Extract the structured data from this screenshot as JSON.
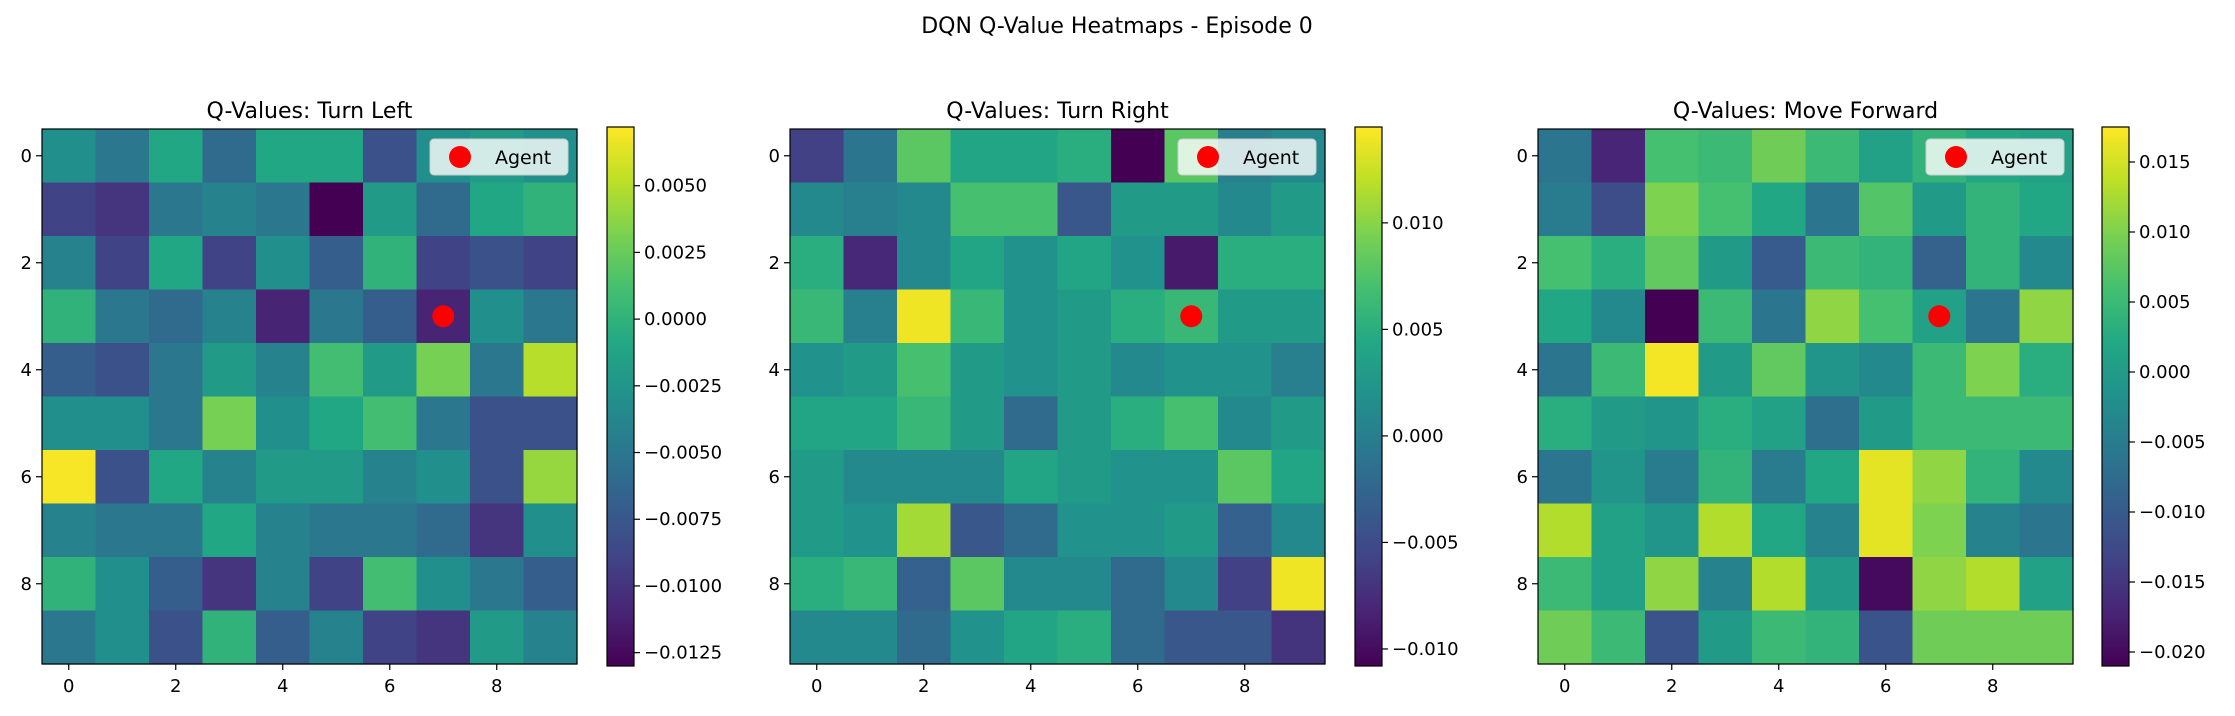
{
  "figure_title": "DQN Q-Value Heatmaps - Episode 0",
  "chart_data": [
    {
      "type": "heatmap",
      "title": "Q-Values: Turn Left",
      "legend": "Agent",
      "legend_position": "top-right",
      "agent": {
        "x": 7,
        "y": 3
      },
      "x_ticks": [
        "0",
        "2",
        "4",
        "6",
        "8"
      ],
      "y_ticks": [
        "0",
        "2",
        "4",
        "6",
        "8"
      ],
      "colorbar": {
        "min": -0.013,
        "max": 0.0072,
        "ticks": [
          -0.0125,
          -0.01,
          -0.0075,
          -0.005,
          -0.0025,
          0.0,
          0.0025,
          0.005
        ],
        "tick_labels": [
          "−0.0125",
          "−0.0100",
          "−0.0075",
          "−0.0050",
          "−0.0025",
          "0.0000",
          "0.0025",
          "0.0050"
        ]
      },
      "values": [
        [
          -0.003,
          -0.005,
          -0.001,
          -0.006,
          -0.001,
          -0.001,
          -0.008,
          -0.003,
          -0.002,
          -0.003
        ],
        [
          -0.009,
          -0.01,
          -0.005,
          -0.004,
          -0.005,
          -0.013,
          -0.002,
          -0.006,
          -0.001,
          0.0
        ],
        [
          -0.004,
          -0.009,
          -0.001,
          -0.009,
          -0.003,
          -0.007,
          0.0,
          -0.009,
          -0.008,
          -0.009
        ],
        [
          0.0,
          -0.005,
          -0.006,
          -0.004,
          -0.011,
          -0.005,
          -0.007,
          -0.011,
          -0.003,
          -0.005
        ],
        [
          -0.007,
          -0.008,
          -0.005,
          -0.002,
          -0.004,
          0.001,
          -0.002,
          0.003,
          -0.005,
          0.005
        ],
        [
          -0.003,
          -0.003,
          -0.005,
          0.003,
          -0.003,
          -0.001,
          0.001,
          -0.005,
          -0.008,
          -0.008
        ],
        [
          0.007,
          -0.008,
          -0.001,
          -0.004,
          -0.002,
          -0.002,
          -0.004,
          -0.003,
          -0.008,
          0.004
        ],
        [
          -0.004,
          -0.005,
          -0.005,
          -0.001,
          -0.004,
          -0.005,
          -0.005,
          -0.006,
          -0.01,
          -0.003
        ],
        [
          0.0,
          -0.003,
          -0.007,
          -0.01,
          -0.004,
          -0.009,
          0.001,
          -0.003,
          -0.005,
          -0.007
        ],
        [
          -0.005,
          -0.003,
          -0.008,
          0.0,
          -0.007,
          -0.004,
          -0.009,
          -0.01,
          -0.002,
          -0.004
        ]
      ]
    },
    {
      "type": "heatmap",
      "title": "Q-Values: Turn Right",
      "legend": "Agent",
      "legend_position": "top-right",
      "agent": {
        "x": 7,
        "y": 3
      },
      "x_ticks": [
        "0",
        "2",
        "4",
        "6",
        "8"
      ],
      "y_ticks": [
        "0",
        "2",
        "4",
        "6",
        "8"
      ],
      "colorbar": {
        "min": -0.0108,
        "max": 0.0145,
        "ticks": [
          -0.01,
          -0.005,
          0.0,
          0.005,
          0.01
        ],
        "tick_labels": [
          "−0.010",
          "−0.005",
          "0.000",
          "0.005",
          "0.010"
        ]
      },
      "values": [
        [
          -0.006,
          -0.001,
          0.008,
          0.004,
          0.004,
          0.005,
          -0.011,
          0.008,
          0.0,
          0.001
        ],
        [
          0.001,
          0.0,
          0.001,
          0.007,
          0.007,
          -0.004,
          0.003,
          0.003,
          0.001,
          0.003
        ],
        [
          0.005,
          -0.008,
          0.001,
          0.004,
          0.002,
          0.004,
          0.002,
          -0.009,
          0.005,
          0.005
        ],
        [
          0.006,
          0.0,
          0.014,
          0.006,
          0.002,
          0.003,
          0.005,
          0.006,
          0.003,
          0.003
        ],
        [
          0.002,
          0.003,
          0.007,
          0.003,
          0.002,
          0.003,
          0.001,
          0.002,
          0.002,
          0.0
        ],
        [
          0.004,
          0.004,
          0.006,
          0.003,
          -0.002,
          0.003,
          0.005,
          0.007,
          0.001,
          0.003
        ],
        [
          0.003,
          0.001,
          0.001,
          0.001,
          0.004,
          0.003,
          0.002,
          0.002,
          0.008,
          0.004
        ],
        [
          0.003,
          0.002,
          0.011,
          -0.004,
          -0.002,
          0.002,
          0.002,
          0.003,
          -0.003,
          0.001
        ],
        [
          0.005,
          0.006,
          -0.003,
          0.008,
          0.001,
          0.001,
          -0.002,
          0.001,
          -0.006,
          0.014
        ],
        [
          0.001,
          0.001,
          -0.002,
          0.002,
          0.004,
          0.005,
          -0.002,
          -0.004,
          -0.004,
          -0.007
        ]
      ]
    },
    {
      "type": "heatmap",
      "title": "Q-Values: Move Forward",
      "legend": "Agent",
      "legend_position": "top-right",
      "agent": {
        "x": 7,
        "y": 3
      },
      "x_ticks": [
        "0",
        "2",
        "4",
        "6",
        "8"
      ],
      "y_ticks": [
        "0",
        "2",
        "4",
        "6",
        "8"
      ],
      "colorbar": {
        "min": -0.021,
        "max": 0.0175,
        "ticks": [
          -0.02,
          -0.015,
          -0.01,
          -0.005,
          0.0,
          0.005,
          0.01,
          0.015
        ],
        "tick_labels": [
          "−0.020",
          "−0.015",
          "−0.010",
          "−0.005",
          "0.000",
          "0.005",
          "0.010",
          "0.015"
        ]
      },
      "values": [
        [
          -0.006,
          -0.017,
          0.006,
          0.005,
          0.009,
          0.005,
          0.001,
          0.004,
          0.002,
          0.001
        ],
        [
          -0.005,
          -0.012,
          0.01,
          0.006,
          0.002,
          -0.006,
          0.007,
          0.0,
          0.004,
          0.002
        ],
        [
          0.006,
          0.003,
          0.008,
          0.0,
          -0.01,
          0.005,
          0.004,
          -0.009,
          0.004,
          -0.003
        ],
        [
          0.002,
          -0.003,
          -0.021,
          0.005,
          -0.006,
          0.011,
          0.006,
          0.001,
          -0.006,
          0.011
        ],
        [
          -0.006,
          0.005,
          0.017,
          0.0,
          0.008,
          -0.001,
          -0.003,
          0.005,
          0.01,
          0.003
        ],
        [
          0.003,
          0.0,
          -0.001,
          0.003,
          0.001,
          -0.007,
          0.0,
          0.005,
          0.005,
          0.005
        ],
        [
          -0.006,
          -0.001,
          -0.005,
          0.004,
          -0.005,
          0.002,
          0.016,
          0.011,
          0.004,
          -0.003
        ],
        [
          0.013,
          0.001,
          -0.001,
          0.013,
          0.002,
          -0.004,
          0.016,
          0.01,
          -0.004,
          -0.006
        ],
        [
          0.005,
          0.001,
          0.011,
          -0.004,
          0.013,
          0.0,
          -0.02,
          0.011,
          0.013,
          0.001
        ],
        [
          0.009,
          0.005,
          -0.011,
          0.0,
          0.005,
          0.004,
          -0.011,
          0.009,
          0.009,
          0.009
        ]
      ]
    }
  ]
}
